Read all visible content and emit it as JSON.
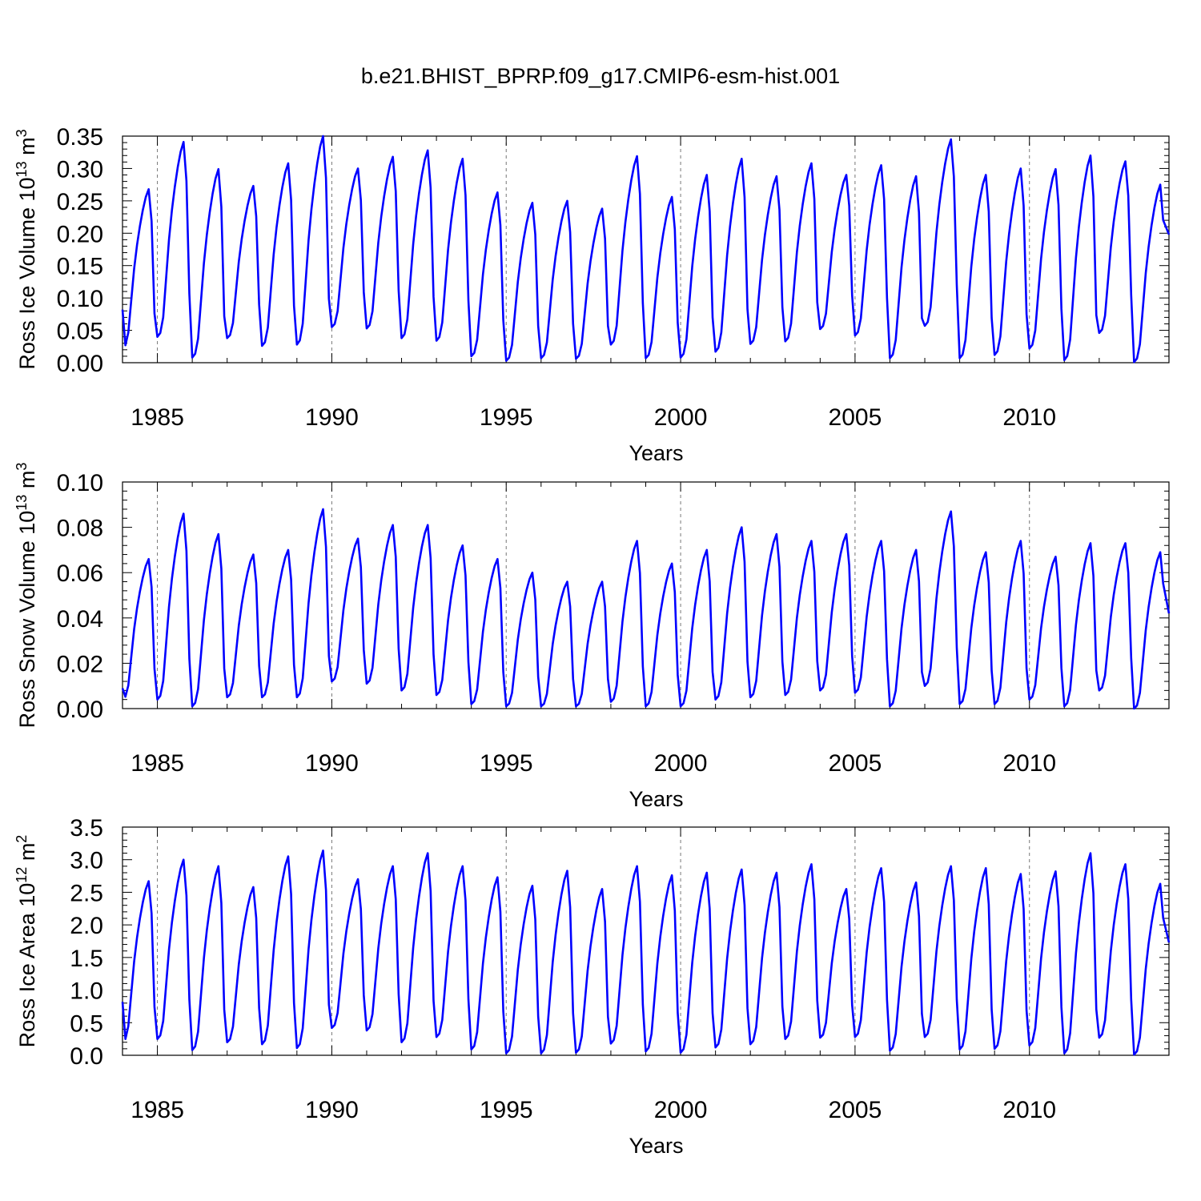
{
  "figure": {
    "title": "b.e21.BHIST_BPRP.f09_g17.CMIP6-esm-hist.001"
  },
  "chart_data": [
    {
      "type": "line",
      "title": "",
      "xlabel": "Years",
      "ylabel": "Ross Ice Volume 10",
      "ylabel_exp": "13",
      "ylabel_unit": " m",
      "ylabel_unit_exp": "3",
      "xlim": [
        1984.0,
        2014.0
      ],
      "ylim": [
        0.0,
        0.35
      ],
      "x_ticks": [
        "1985",
        "1990",
        "1995",
        "2000",
        "2005",
        "2010"
      ],
      "y_ticks": [
        "0.00",
        "0.05",
        "0.10",
        "0.15",
        "0.20",
        "0.25",
        "0.30",
        "0.35"
      ],
      "grid": "dashed vertical lines at 5-year ticks",
      "color": "#0000ff",
      "annual_max": [
        0.268,
        0.341,
        0.299,
        0.273,
        0.308,
        0.35,
        0.3,
        0.318,
        0.328,
        0.315,
        0.263,
        0.247,
        0.25,
        0.238,
        0.319,
        0.256,
        0.29,
        0.315,
        0.288,
        0.308,
        0.29,
        0.305,
        0.288,
        0.345,
        0.29,
        0.3,
        0.299,
        0.32,
        0.311,
        0.275
      ],
      "annual_min": [
        0.022,
        0.04,
        0.008,
        0.038,
        0.026,
        0.028,
        0.055,
        0.053,
        0.038,
        0.034,
        0.01,
        0.003,
        0.007,
        0.006,
        0.028,
        0.007,
        0.008,
        0.017,
        0.029,
        0.033,
        0.052,
        0.042,
        0.007,
        0.057,
        0.007,
        0.012,
        0.022,
        0.004,
        0.046,
        0.001
      ],
      "start_value": 0.082,
      "end_value": 0.198
    },
    {
      "type": "line",
      "title": "",
      "xlabel": "Years",
      "ylabel": "Ross Snow Volume 10",
      "ylabel_exp": "13",
      "ylabel_unit": " m",
      "ylabel_unit_exp": "3",
      "xlim": [
        1984.0,
        2014.0
      ],
      "ylim": [
        0.0,
        0.1
      ],
      "x_ticks": [
        "1985",
        "1990",
        "1995",
        "2000",
        "2005",
        "2010"
      ],
      "y_ticks": [
        "0.00",
        "0.02",
        "0.04",
        "0.06",
        "0.08",
        "0.10"
      ],
      "grid": "dashed vertical lines at 5-year ticks",
      "color": "#0000ff",
      "annual_max": [
        0.066,
        0.086,
        0.077,
        0.068,
        0.07,
        0.088,
        0.075,
        0.081,
        0.081,
        0.072,
        0.066,
        0.06,
        0.056,
        0.056,
        0.074,
        0.064,
        0.07,
        0.08,
        0.077,
        0.074,
        0.077,
        0.074,
        0.07,
        0.087,
        0.069,
        0.074,
        0.067,
        0.073,
        0.073,
        0.069
      ],
      "annual_min": [
        0.004,
        0.004,
        0.001,
        0.005,
        0.005,
        0.005,
        0.012,
        0.011,
        0.008,
        0.006,
        0.002,
        0.001,
        0.001,
        0.001,
        0.003,
        0.001,
        0.001,
        0.004,
        0.005,
        0.006,
        0.008,
        0.007,
        0.001,
        0.01,
        0.002,
        0.002,
        0.004,
        0.001,
        0.008,
        0.0
      ],
      "start_value": 0.009,
      "end_value": 0.042
    },
    {
      "type": "line",
      "title": "",
      "xlabel": "Years",
      "ylabel": "Ross Ice Area 10",
      "ylabel_exp": "12",
      "ylabel_unit": " m",
      "ylabel_unit_exp": "2",
      "xlim": [
        1984.0,
        2014.0
      ],
      "ylim": [
        0.0,
        3.5
      ],
      "x_ticks": [
        "1985",
        "1990",
        "1995",
        "2000",
        "2005",
        "2010"
      ],
      "y_ticks": [
        "0.0",
        "0.5",
        "1.0",
        "1.5",
        "2.0",
        "2.5",
        "3.0",
        "3.5"
      ],
      "grid": "dashed vertical lines at 5-year ticks",
      "color": "#0000ff",
      "annual_max": [
        2.67,
        3.0,
        2.9,
        2.58,
        3.05,
        3.14,
        2.7,
        2.9,
        3.1,
        2.9,
        2.73,
        2.6,
        2.83,
        2.55,
        2.9,
        2.76,
        2.8,
        2.85,
        2.8,
        2.93,
        2.55,
        2.87,
        2.65,
        2.9,
        2.87,
        2.78,
        2.82,
        3.1,
        2.93,
        2.63
      ],
      "annual_min": [
        0.2,
        0.25,
        0.08,
        0.2,
        0.17,
        0.11,
        0.42,
        0.38,
        0.2,
        0.28,
        0.09,
        0.03,
        0.03,
        0.04,
        0.18,
        0.06,
        0.04,
        0.12,
        0.17,
        0.25,
        0.27,
        0.28,
        0.07,
        0.28,
        0.09,
        0.1,
        0.15,
        0.03,
        0.27,
        0.01
      ],
      "start_value": 0.82,
      "end_value": 1.73
    }
  ]
}
